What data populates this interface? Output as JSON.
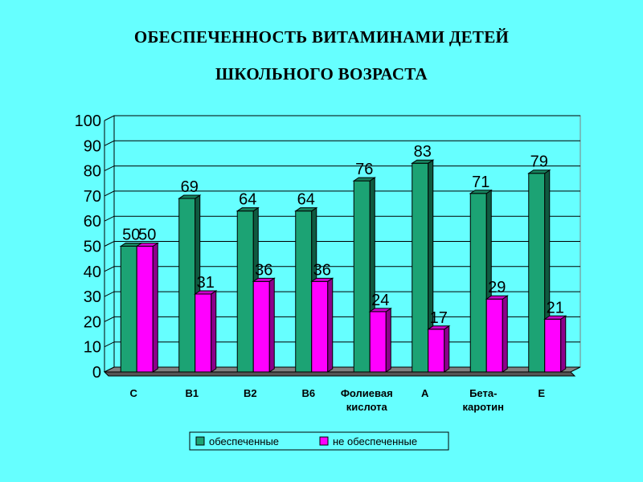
{
  "title_line1": "ОБЕСПЕЧЕННОСТЬ ВИТАМИНАМИ ДЕТЕЙ",
  "title_line2": "ШКОЛЬНОГО ВОЗРАСТА",
  "colors": {
    "background": "#66ffff",
    "series1": "#1ca374",
    "series2": "#ff00ff"
  },
  "chart_data": {
    "type": "bar",
    "title": "ОБЕСПЕЧЕННОСТЬ ВИТАМИНАМИ ДЕТЕЙ ШКОЛЬНОГО ВОЗРАСТА",
    "categories": [
      [
        "С"
      ],
      [
        "В1"
      ],
      [
        "В2"
      ],
      [
        "В6"
      ],
      [
        "Фолиевая",
        "кислота"
      ],
      [
        "А"
      ],
      [
        "Бета-",
        "каротин"
      ],
      [
        "Е"
      ]
    ],
    "series": [
      {
        "name": "обеспеченные",
        "values": [
          50,
          69,
          64,
          64,
          76,
          83,
          71,
          79
        ]
      },
      {
        "name": "не обеспеченные",
        "values": [
          50,
          31,
          36,
          36,
          24,
          17,
          29,
          21
        ]
      }
    ],
    "ylim": [
      0,
      100
    ],
    "yticks": [
      0,
      10,
      20,
      30,
      40,
      50,
      60,
      70,
      80,
      90,
      100
    ],
    "grid": true,
    "legend": "bottom"
  }
}
